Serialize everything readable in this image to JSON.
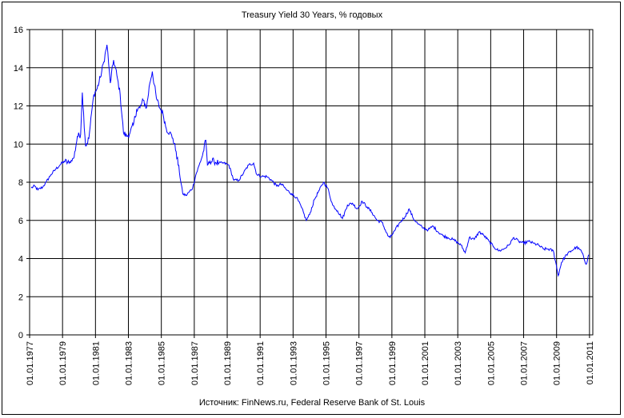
{
  "chart_data": {
    "type": "line",
    "title": "Treasury Yield 30 Years, % годовых",
    "source": "Источник: FinNews.ru, Federal Reserve Bank of St. Louis",
    "xlabel": "",
    "ylabel": "",
    "ylim": [
      0,
      16
    ],
    "yticks": [
      0,
      2,
      4,
      6,
      8,
      10,
      12,
      14,
      16
    ],
    "xlim": [
      1977,
      2011.2
    ],
    "xtick_labels": [
      "01.01.1977",
      "01.01.1979",
      "01.01.1981",
      "01.01.1983",
      "01.01.1985",
      "01.01.1987",
      "01.01.1989",
      "01.01.1991",
      "01.01.1993",
      "01.01.1995",
      "01.01.1997",
      "01.01.1999",
      "01.01.2001",
      "01.01.2003",
      "01.01.2005",
      "01.01.2007",
      "01.01.2009",
      "01.01.2011"
    ],
    "grid": true,
    "line_color": "#0000ff",
    "series": [
      {
        "name": "",
        "x": [
          1977.1,
          1977.3,
          1977.5,
          1977.8,
          1978.0,
          1978.3,
          1978.6,
          1978.9,
          1979.1,
          1979.4,
          1979.7,
          1979.9,
          1980.1,
          1980.2,
          1980.4,
          1980.6,
          1980.8,
          1980.9,
          1981.1,
          1981.3,
          1981.5,
          1981.7,
          1981.8,
          1981.9,
          1982.1,
          1982.3,
          1982.5,
          1982.7,
          1982.9,
          1983.1,
          1983.3,
          1983.5,
          1983.7,
          1983.9,
          1984.1,
          1984.3,
          1984.45,
          1984.7,
          1984.9,
          1985.1,
          1985.3,
          1985.5,
          1985.7,
          1985.9,
          1986.1,
          1986.3,
          1986.5,
          1986.7,
          1986.9,
          1987.1,
          1987.3,
          1987.5,
          1987.7,
          1987.8,
          1987.95,
          1988.2,
          1988.5,
          1988.8,
          1989.1,
          1989.4,
          1989.7,
          1990.0,
          1990.3,
          1990.6,
          1990.8,
          1991.1,
          1991.4,
          1991.7,
          1992.0,
          1992.3,
          1992.6,
          1992.9,
          1993.2,
          1993.5,
          1993.8,
          1994.0,
          1994.3,
          1994.6,
          1994.85,
          1995.1,
          1995.4,
          1995.7,
          1996.0,
          1996.3,
          1996.6,
          1996.9,
          1997.2,
          1997.5,
          1997.8,
          1998.1,
          1998.4,
          1998.75,
          1998.9,
          1999.2,
          1999.5,
          1999.8,
          2000.05,
          2000.3,
          2000.6,
          2000.9,
          2001.2,
          2001.5,
          2001.8,
          2002.1,
          2002.4,
          2002.7,
          2002.9,
          2003.2,
          2003.45,
          2003.7,
          2004.0,
          2004.3,
          2004.6,
          2004.9,
          2005.2,
          2005.5,
          2005.8,
          2006.1,
          2006.4,
          2006.7,
          2007.0,
          2007.3,
          2007.6,
          2007.9,
          2008.2,
          2008.5,
          2008.8,
          2008.95,
          2009.1,
          2009.3,
          2009.6,
          2009.9,
          2010.2,
          2010.5,
          2010.8,
          2010.95
        ],
        "values": [
          7.7,
          7.8,
          7.6,
          7.75,
          8.0,
          8.4,
          8.7,
          8.95,
          9.1,
          9.0,
          9.3,
          10.4,
          10.5,
          12.7,
          9.9,
          10.3,
          11.9,
          12.6,
          12.9,
          13.5,
          14.3,
          15.2,
          14.2,
          13.2,
          14.4,
          13.6,
          12.6,
          10.6,
          10.4,
          10.6,
          11.0,
          11.8,
          11.9,
          12.3,
          11.9,
          13.2,
          13.8,
          12.4,
          11.9,
          11.6,
          10.8,
          10.6,
          10.3,
          9.6,
          8.5,
          7.4,
          7.3,
          7.5,
          7.7,
          8.4,
          8.9,
          9.4,
          10.2,
          8.9,
          9.1,
          9.1,
          9.0,
          9.0,
          8.9,
          8.1,
          8.1,
          8.5,
          8.9,
          9.0,
          8.4,
          8.3,
          8.3,
          8.1,
          7.8,
          7.9,
          7.6,
          7.4,
          7.2,
          6.7,
          6.0,
          6.3,
          7.1,
          7.6,
          8.0,
          7.7,
          6.8,
          6.5,
          6.1,
          6.8,
          6.9,
          6.6,
          7.0,
          6.7,
          6.4,
          6.0,
          5.9,
          5.2,
          5.1,
          5.5,
          5.9,
          6.2,
          6.6,
          6.1,
          5.8,
          5.6,
          5.5,
          5.7,
          5.4,
          5.2,
          5.1,
          5.0,
          4.9,
          4.7,
          4.3,
          5.1,
          5.0,
          5.4,
          5.2,
          4.9,
          4.6,
          4.4,
          4.5,
          4.7,
          5.1,
          4.9,
          4.8,
          4.9,
          4.8,
          4.7,
          4.5,
          4.5,
          4.4,
          3.8,
          3.1,
          3.8,
          4.2,
          4.4,
          4.6,
          4.4,
          3.7,
          4.2
        ]
      }
    ]
  }
}
